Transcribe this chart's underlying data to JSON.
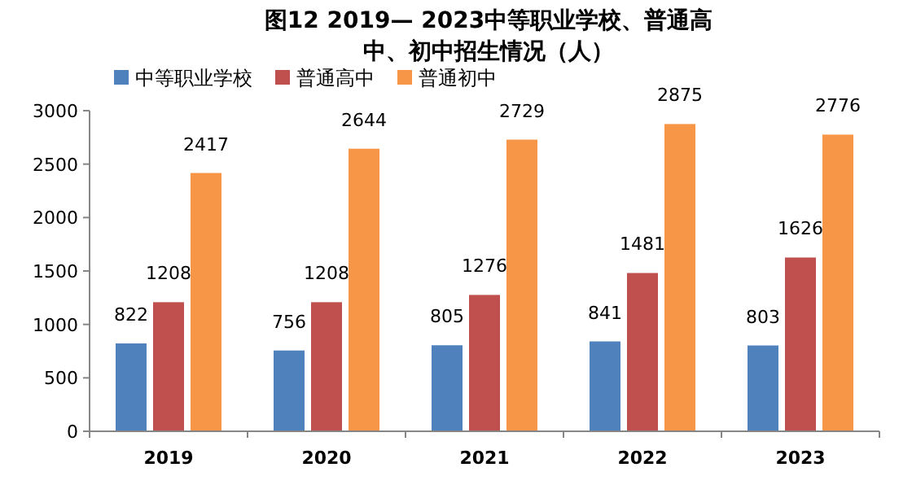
{
  "chart_data": {
    "type": "bar",
    "title": "图12  2019— 2023中等职业学校、普通高中、初中招生情况（人）",
    "categories": [
      "2019",
      "2020",
      "2021",
      "2022",
      "2023"
    ],
    "series": [
      {
        "name": "中等职业学校",
        "color": "#4f81bd",
        "values": [
          822,
          756,
          805,
          841,
          803
        ]
      },
      {
        "name": "普通高中",
        "color": "#c0504d",
        "values": [
          1208,
          1208,
          1276,
          1481,
          1626
        ]
      },
      {
        "name": "普通初中",
        "color": "#f79646",
        "values": [
          2417,
          2644,
          2729,
          2875,
          2776
        ]
      }
    ],
    "ylim": [
      0,
      3000
    ],
    "yticks": [
      0,
      500,
      1000,
      1500,
      2000,
      2500,
      3000
    ],
    "data_labels": true,
    "legend": "top left",
    "grid": false
  }
}
